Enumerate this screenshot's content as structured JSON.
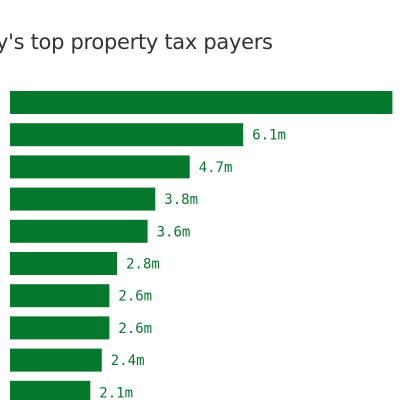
{
  "chart_data": {
    "type": "bar",
    "orientation": "horizontal",
    "title": "y's top property tax payers",
    "xlabel": "",
    "ylabel": "",
    "values": [
      10.0,
      6.1,
      4.7,
      3.8,
      3.6,
      2.8,
      2.6,
      2.6,
      2.4,
      2.1
    ],
    "labels": [
      "",
      "6.1m",
      "4.7m",
      "3.8m",
      "3.6m",
      "2.8m",
      "2.6m",
      "2.6m",
      "2.4m",
      "2.1m"
    ],
    "xlim": [
      0,
      10.2
    ],
    "grid": false,
    "bar_color": "#06792d",
    "label_color": "#06792d"
  }
}
